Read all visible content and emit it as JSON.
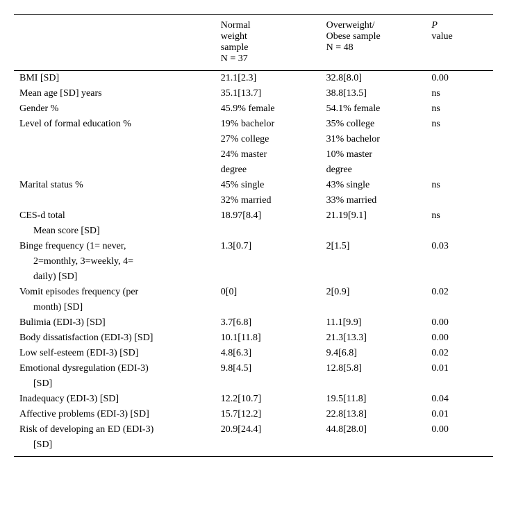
{
  "header": {
    "col_label": "",
    "col_a_line1": "Normal",
    "col_a_line2": "weight",
    "col_a_line3": "sample",
    "col_a_line4": "N = 37",
    "col_b_line1": "Overweight/",
    "col_b_line2": "Obese sample",
    "col_b_line3": "N = 48",
    "col_p_line1": "P",
    "col_p_line2": "value"
  },
  "rows": {
    "r0": {
      "label": "BMI [SD]",
      "a": "21.1[2.3]",
      "b": "32.8[8.0]",
      "p": "0.00"
    },
    "r1": {
      "label": "Mean age [SD] years",
      "a": "35.1[13.7]",
      "b": "38.8[13.5]",
      "p": "ns"
    },
    "r2": {
      "label": "Gender %",
      "a": "45.9% female",
      "b": "54.1% female",
      "p": "ns"
    },
    "r3": {
      "label": "Level of formal education %",
      "a": "19% bachelor",
      "b": "35% college",
      "p": "ns"
    },
    "r3b": {
      "a": "27% college",
      "b": "31% bachelor"
    },
    "r3c": {
      "a": "24% master",
      "b": "10% master"
    },
    "r3d": {
      "a": "degree",
      "b": "degree"
    },
    "r4": {
      "label": "Marital status %",
      "a": "45% single",
      "b": "43% single",
      "p": "ns"
    },
    "r4b": {
      "a": "32% married",
      "b": "33% married"
    },
    "r5": {
      "label": "CES-d total",
      "a": "18.97[8.4]",
      "b": "21.19[9.1]",
      "p": "ns"
    },
    "r5b": {
      "label": "Mean score [SD]"
    },
    "r6": {
      "label": "Binge frequency (1= never,",
      "a": "1.3[0.7]",
      "b": "2[1.5]",
      "p": "0.03"
    },
    "r6b": {
      "label": "2=monthly, 3=weekly, 4="
    },
    "r6c": {
      "label": "daily) [SD]"
    },
    "r7": {
      "label": "Vomit episodes frequency (per",
      "a": "0[0]",
      "b": "2[0.9]",
      "p": "0.02"
    },
    "r7b": {
      "label": "month) [SD]"
    },
    "r8": {
      "label": "Bulimia (EDI-3) [SD]",
      "a": "3.7[6.8]",
      "b": "11.1[9.9]",
      "p": "0.00"
    },
    "r9": {
      "label": "Body dissatisfaction (EDI-3) [SD]",
      "a": "10.1[11.8]",
      "b": "21.3[13.3]",
      "p": "0.00"
    },
    "r10": {
      "label": "Low self-esteem (EDI-3) [SD]",
      "a": "4.8[6.3]",
      "b": "9.4[6.8]",
      "p": "0.02"
    },
    "r11": {
      "label": "Emotional dysregulation (EDI-3)",
      "a": "9.8[4.5]",
      "b": "12.8[5.8]",
      "p": "0.01"
    },
    "r11b": {
      "label": "[SD]"
    },
    "r12": {
      "label": "Inadequacy (EDI-3) [SD]",
      "a": "12.2[10.7]",
      "b": "19.5[11.8]",
      "p": "0.04"
    },
    "r13": {
      "label": "Affective problems (EDI-3) [SD]",
      "a": "15.7[12.2]",
      "b": "22.8[13.8]",
      "p": "0.01"
    },
    "r14": {
      "label": "Risk of developing an ED (EDI-3)",
      "a": "20.9[24.4]",
      "b": "44.8[28.0]",
      "p": "0.00"
    },
    "r14b": {
      "label": "[SD]"
    }
  }
}
